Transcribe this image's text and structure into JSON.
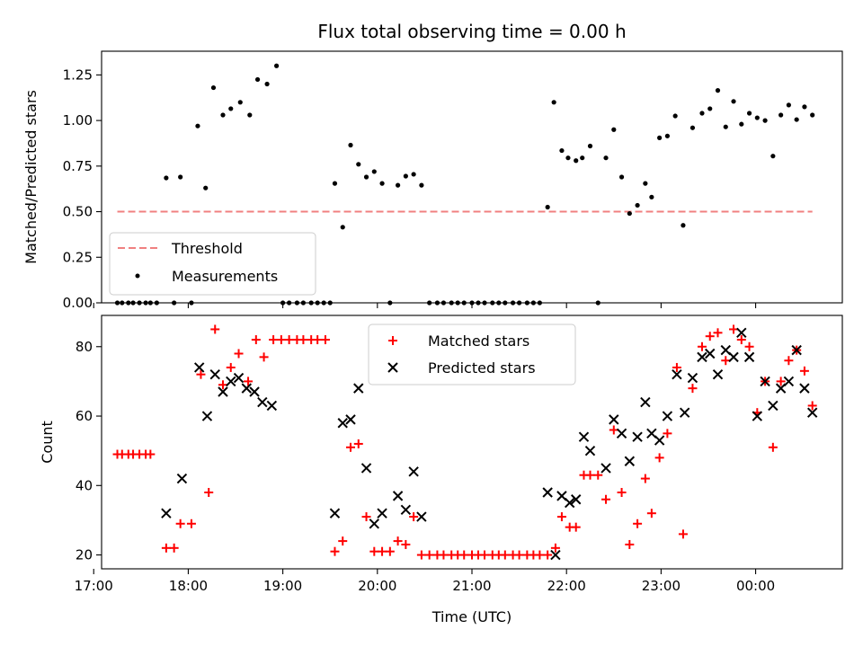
{
  "chart_data": [
    {
      "type": "scatter",
      "title": "Flux total observing time = 0.00 h",
      "xlabel": "",
      "ylabel": "Matched/Predicted stars",
      "ylim": [
        0,
        1.38
      ],
      "yticks": [
        "0.00",
        "0.25",
        "0.50",
        "0.75",
        "1.00",
        "1.25"
      ],
      "legend": {
        "placement": "lower-left",
        "entries": [
          {
            "label": "Threshold",
            "marker": "dashed-line",
            "color": "#f08080"
          },
          {
            "label": "Measurements",
            "marker": "dot",
            "color": "#000000"
          }
        ]
      },
      "threshold": {
        "value": 0.5,
        "x_start": "17:15",
        "x_end": "00:36"
      },
      "series": [
        {
          "name": "Measurements",
          "color": "#000000",
          "points": [
            [
              "17:15",
              0
            ],
            [
              "17:18",
              0
            ],
            [
              "17:22",
              0
            ],
            [
              "17:25",
              0
            ],
            [
              "17:29",
              0
            ],
            [
              "17:33",
              0
            ],
            [
              "17:36",
              0
            ],
            [
              "17:40",
              0
            ],
            [
              "17:46",
              0.685
            ],
            [
              "17:51",
              0
            ],
            [
              "17:55",
              0.69
            ],
            [
              "18:02",
              0
            ],
            [
              "18:06",
              0.97
            ],
            [
              "18:11",
              0.63
            ],
            [
              "18:16",
              1.18
            ],
            [
              "18:22",
              1.03
            ],
            [
              "18:27",
              1.065
            ],
            [
              "18:33",
              1.1
            ],
            [
              "18:39",
              1.03
            ],
            [
              "18:44",
              1.225
            ],
            [
              "18:50",
              1.2
            ],
            [
              "18:56",
              1.3
            ],
            [
              "19:00",
              0
            ],
            [
              "19:04",
              0
            ],
            [
              "19:09",
              0
            ],
            [
              "19:13",
              0
            ],
            [
              "19:18",
              0
            ],
            [
              "19:22",
              0
            ],
            [
              "19:26",
              0
            ],
            [
              "19:30",
              0
            ],
            [
              "19:33",
              0.655
            ],
            [
              "19:38",
              0.415
            ],
            [
              "19:43",
              0.865
            ],
            [
              "19:48",
              0.76
            ],
            [
              "19:53",
              0.69
            ],
            [
              "19:58",
              0.72
            ],
            [
              "20:03",
              0.655
            ],
            [
              "20:08",
              0
            ],
            [
              "20:13",
              0.645
            ],
            [
              "20:18",
              0.695
            ],
            [
              "20:23",
              0.705
            ],
            [
              "20:28",
              0.645
            ],
            [
              "20:33",
              0
            ],
            [
              "20:38",
              0
            ],
            [
              "20:42",
              0
            ],
            [
              "20:47",
              0
            ],
            [
              "20:51",
              0
            ],
            [
              "20:55",
              0
            ],
            [
              "21:00",
              0
            ],
            [
              "21:04",
              0
            ],
            [
              "21:08",
              0
            ],
            [
              "21:13",
              0
            ],
            [
              "21:17",
              0
            ],
            [
              "21:21",
              0
            ],
            [
              "21:26",
              0
            ],
            [
              "21:30",
              0
            ],
            [
              "21:35",
              0
            ],
            [
              "21:39",
              0
            ],
            [
              "21:43",
              0
            ],
            [
              "21:48",
              0.525
            ],
            [
              "21:52",
              1.1
            ],
            [
              "21:57",
              0.835
            ],
            [
              "22:01",
              0.795
            ],
            [
              "22:06",
              0.78
            ],
            [
              "22:10",
              0.795
            ],
            [
              "22:15",
              0.86
            ],
            [
              "22:20",
              0
            ],
            [
              "22:25",
              0.795
            ],
            [
              "22:30",
              0.95
            ],
            [
              "22:35",
              0.69
            ],
            [
              "22:40",
              0.49
            ],
            [
              "22:45",
              0.535
            ],
            [
              "22:50",
              0.655
            ],
            [
              "22:54",
              0.58
            ],
            [
              "22:59",
              0.905
            ],
            [
              "23:04",
              0.915
            ],
            [
              "23:09",
              1.025
            ],
            [
              "23:14",
              0.425
            ],
            [
              "23:20",
              0.96
            ],
            [
              "23:26",
              1.04
            ],
            [
              "23:31",
              1.065
            ],
            [
              "23:36",
              1.165
            ],
            [
              "23:41",
              0.965
            ],
            [
              "23:46",
              1.105
            ],
            [
              "23:51",
              0.98
            ],
            [
              "23:56",
              1.04
            ],
            [
              "00:01",
              1.015
            ],
            [
              "00:06",
              1.0
            ],
            [
              "00:11",
              0.805
            ],
            [
              "00:16",
              1.03
            ],
            [
              "00:21",
              1.085
            ],
            [
              "00:26",
              1.005
            ],
            [
              "00:31",
              1.075
            ],
            [
              "00:36",
              1.03
            ]
          ]
        }
      ]
    },
    {
      "type": "scatter",
      "title": "",
      "xlabel": "Time (UTC)",
      "ylabel": "Count",
      "ylim": [
        16,
        89
      ],
      "yticks": [
        "20",
        "40",
        "60",
        "80"
      ],
      "xlim": [
        "17:05",
        "00:55"
      ],
      "xticks": [
        "17:00",
        "18:00",
        "19:00",
        "20:00",
        "21:00",
        "22:00",
        "23:00",
        "00:00"
      ],
      "legend": {
        "placement": "upper-center",
        "entries": [
          {
            "label": "Matched stars",
            "marker": "plus",
            "color": "#ff0000"
          },
          {
            "label": "Predicted stars",
            "marker": "x",
            "color": "#000000"
          }
        ]
      },
      "series": [
        {
          "name": "Matched stars",
          "color": "#ff0000",
          "points": [
            [
              "17:15",
              49
            ],
            [
              "17:18",
              49
            ],
            [
              "17:22",
              49
            ],
            [
              "17:25",
              49
            ],
            [
              "17:29",
              49
            ],
            [
              "17:33",
              49
            ],
            [
              "17:36",
              49
            ],
            [
              "17:46",
              22
            ],
            [
              "17:51",
              22
            ],
            [
              "17:55",
              29
            ],
            [
              "18:02",
              29
            ],
            [
              "18:08",
              72
            ],
            [
              "18:13",
              38
            ],
            [
              "18:17",
              85
            ],
            [
              "18:22",
              69
            ],
            [
              "18:27",
              74
            ],
            [
              "18:32",
              78
            ],
            [
              "18:38",
              70
            ],
            [
              "18:43",
              82
            ],
            [
              "18:48",
              77
            ],
            [
              "18:54",
              82
            ],
            [
              "18:59",
              82
            ],
            [
              "19:04",
              82
            ],
            [
              "19:09",
              82
            ],
            [
              "19:13",
              82
            ],
            [
              "19:18",
              82
            ],
            [
              "19:22",
              82
            ],
            [
              "19:27",
              82
            ],
            [
              "19:33",
              21
            ],
            [
              "19:38",
              24
            ],
            [
              "19:43",
              51
            ],
            [
              "19:48",
              52
            ],
            [
              "19:53",
              31
            ],
            [
              "19:58",
              21
            ],
            [
              "20:03",
              21
            ],
            [
              "20:08",
              21
            ],
            [
              "20:13",
              24
            ],
            [
              "20:18",
              23
            ],
            [
              "20:23",
              31
            ],
            [
              "20:28",
              20
            ],
            [
              "20:33",
              20
            ],
            [
              "20:38",
              20
            ],
            [
              "20:42",
              20
            ],
            [
              "20:47",
              20
            ],
            [
              "20:51",
              20
            ],
            [
              "20:55",
              20
            ],
            [
              "21:00",
              20
            ],
            [
              "21:04",
              20
            ],
            [
              "21:08",
              20
            ],
            [
              "21:13",
              20
            ],
            [
              "21:17",
              20
            ],
            [
              "21:21",
              20
            ],
            [
              "21:26",
              20
            ],
            [
              "21:30",
              20
            ],
            [
              "21:35",
              20
            ],
            [
              "21:39",
              20
            ],
            [
              "21:43",
              20
            ],
            [
              "21:48",
              20
            ],
            [
              "21:53",
              22
            ],
            [
              "21:57",
              31
            ],
            [
              "22:02",
              28
            ],
            [
              "22:06",
              28
            ],
            [
              "22:11",
              43
            ],
            [
              "22:15",
              43
            ],
            [
              "22:20",
              43
            ],
            [
              "22:25",
              36
            ],
            [
              "22:30",
              56
            ],
            [
              "22:35",
              38
            ],
            [
              "22:40",
              23
            ],
            [
              "22:45",
              29
            ],
            [
              "22:50",
              42
            ],
            [
              "22:54",
              32
            ],
            [
              "22:59",
              48
            ],
            [
              "23:04",
              55
            ],
            [
              "23:10",
              74
            ],
            [
              "23:14",
              26
            ],
            [
              "23:20",
              68
            ],
            [
              "23:26",
              80
            ],
            [
              "23:31",
              83
            ],
            [
              "23:36",
              84
            ],
            [
              "23:41",
              76
            ],
            [
              "23:46",
              85
            ],
            [
              "23:51",
              82
            ],
            [
              "23:56",
              80
            ],
            [
              "00:01",
              61
            ],
            [
              "00:06",
              70
            ],
            [
              "00:11",
              51
            ],
            [
              "00:16",
              70
            ],
            [
              "00:21",
              76
            ],
            [
              "00:26",
              79
            ],
            [
              "00:31",
              73
            ],
            [
              "00:36",
              63
            ]
          ]
        },
        {
          "name": "Predicted stars",
          "color": "#000000",
          "points": [
            [
              "17:46",
              32
            ],
            [
              "17:56",
              42
            ],
            [
              "18:07",
              74
            ],
            [
              "18:12",
              60
            ],
            [
              "18:17",
              72
            ],
            [
              "18:22",
              67
            ],
            [
              "18:27",
              70
            ],
            [
              "18:32",
              71
            ],
            [
              "18:37",
              68
            ],
            [
              "18:42",
              67
            ],
            [
              "18:47",
              64
            ],
            [
              "18:53",
              63
            ],
            [
              "19:33",
              32
            ],
            [
              "19:38",
              58
            ],
            [
              "19:43",
              59
            ],
            [
              "19:48",
              68
            ],
            [
              "19:53",
              45
            ],
            [
              "19:58",
              29
            ],
            [
              "20:03",
              32
            ],
            [
              "20:13",
              37
            ],
            [
              "20:18",
              33
            ],
            [
              "20:23",
              44
            ],
            [
              "20:28",
              31
            ],
            [
              "21:48",
              38
            ],
            [
              "21:53",
              20
            ],
            [
              "21:57",
              37
            ],
            [
              "22:02",
              35
            ],
            [
              "22:06",
              36
            ],
            [
              "22:11",
              54
            ],
            [
              "22:15",
              50
            ],
            [
              "22:25",
              45
            ],
            [
              "22:30",
              59
            ],
            [
              "22:35",
              55
            ],
            [
              "22:40",
              47
            ],
            [
              "22:45",
              54
            ],
            [
              "22:50",
              64
            ],
            [
              "22:54",
              55
            ],
            [
              "22:59",
              53
            ],
            [
              "23:04",
              60
            ],
            [
              "23:10",
              72
            ],
            [
              "23:15",
              61
            ],
            [
              "23:20",
              71
            ],
            [
              "23:26",
              77
            ],
            [
              "23:31",
              78
            ],
            [
              "23:36",
              72
            ],
            [
              "23:41",
              79
            ],
            [
              "23:46",
              77
            ],
            [
              "23:51",
              84
            ],
            [
              "23:56",
              77
            ],
            [
              "00:01",
              60
            ],
            [
              "00:06",
              70
            ],
            [
              "00:11",
              63
            ],
            [
              "00:16",
              68
            ],
            [
              "00:21",
              70
            ],
            [
              "00:26",
              79
            ],
            [
              "00:31",
              68
            ],
            [
              "00:36",
              61
            ]
          ]
        }
      ]
    }
  ]
}
